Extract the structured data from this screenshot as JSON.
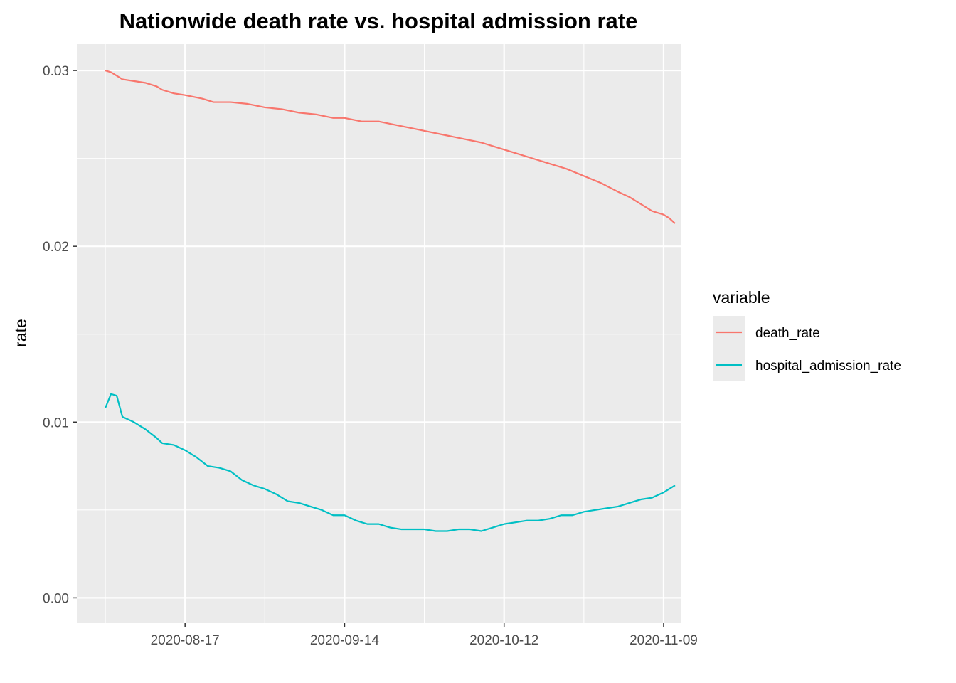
{
  "chart_data": {
    "type": "line",
    "title": "Nationwide death rate vs. hospital admission rate",
    "xlabel": "",
    "ylabel": "rate",
    "ylim": [
      -0.0014,
      0.0315
    ],
    "xlim": [
      "2020-07-29",
      "2020-11-12"
    ],
    "yticks": [
      {
        "value": 0.0,
        "label": "0.00"
      },
      {
        "value": 0.01,
        "label": "0.01"
      },
      {
        "value": 0.02,
        "label": "0.02"
      },
      {
        "value": 0.03,
        "label": "0.03"
      }
    ],
    "xticks": [
      {
        "value": "2020-08-17",
        "label": "2020-08-17"
      },
      {
        "value": "2020-09-14",
        "label": "2020-09-14"
      },
      {
        "value": "2020-10-12",
        "label": "2020-10-12"
      },
      {
        "value": "2020-11-09",
        "label": "2020-11-09"
      }
    ],
    "grid": true,
    "legend": {
      "title": "variable",
      "position": "right"
    },
    "series": [
      {
        "name": "death_rate",
        "color": "#F8766D",
        "points": [
          [
            "2020-08-03",
            0.03
          ],
          [
            "2020-08-04",
            0.0299
          ],
          [
            "2020-08-05",
            0.0297
          ],
          [
            "2020-08-06",
            0.0295
          ],
          [
            "2020-08-08",
            0.0294
          ],
          [
            "2020-08-10",
            0.0293
          ],
          [
            "2020-08-12",
            0.0291
          ],
          [
            "2020-08-13",
            0.0289
          ],
          [
            "2020-08-15",
            0.0287
          ],
          [
            "2020-08-17",
            0.0286
          ],
          [
            "2020-08-20",
            0.0284
          ],
          [
            "2020-08-22",
            0.0282
          ],
          [
            "2020-08-25",
            0.0282
          ],
          [
            "2020-08-28",
            0.0281
          ],
          [
            "2020-08-31",
            0.0279
          ],
          [
            "2020-09-03",
            0.0278
          ],
          [
            "2020-09-06",
            0.0276
          ],
          [
            "2020-09-09",
            0.0275
          ],
          [
            "2020-09-12",
            0.0273
          ],
          [
            "2020-09-14",
            0.0273
          ],
          [
            "2020-09-17",
            0.0271
          ],
          [
            "2020-09-20",
            0.0271
          ],
          [
            "2020-09-23",
            0.0269
          ],
          [
            "2020-09-26",
            0.0267
          ],
          [
            "2020-09-29",
            0.0265
          ],
          [
            "2020-10-02",
            0.0263
          ],
          [
            "2020-10-05",
            0.0261
          ],
          [
            "2020-10-08",
            0.0259
          ],
          [
            "2020-10-11",
            0.0256
          ],
          [
            "2020-10-14",
            0.0253
          ],
          [
            "2020-10-17",
            0.025
          ],
          [
            "2020-10-20",
            0.0247
          ],
          [
            "2020-10-23",
            0.0244
          ],
          [
            "2020-10-26",
            0.024
          ],
          [
            "2020-10-29",
            0.0236
          ],
          [
            "2020-11-01",
            0.0231
          ],
          [
            "2020-11-03",
            0.0228
          ],
          [
            "2020-11-05",
            0.0224
          ],
          [
            "2020-11-07",
            0.022
          ],
          [
            "2020-11-09",
            0.0218
          ],
          [
            "2020-11-10",
            0.0216
          ],
          [
            "2020-11-11",
            0.0213
          ]
        ]
      },
      {
        "name": "hospital_admission_rate",
        "color": "#00BFC4",
        "points": [
          [
            "2020-08-03",
            0.0108
          ],
          [
            "2020-08-04",
            0.0116
          ],
          [
            "2020-08-05",
            0.0115
          ],
          [
            "2020-08-06",
            0.0103
          ],
          [
            "2020-08-08",
            0.01
          ],
          [
            "2020-08-10",
            0.0096
          ],
          [
            "2020-08-12",
            0.0091
          ],
          [
            "2020-08-13",
            0.0088
          ],
          [
            "2020-08-15",
            0.0087
          ],
          [
            "2020-08-17",
            0.0084
          ],
          [
            "2020-08-19",
            0.008
          ],
          [
            "2020-08-21",
            0.0075
          ],
          [
            "2020-08-23",
            0.0074
          ],
          [
            "2020-08-25",
            0.0072
          ],
          [
            "2020-08-27",
            0.0067
          ],
          [
            "2020-08-29",
            0.0064
          ],
          [
            "2020-08-31",
            0.0062
          ],
          [
            "2020-09-02",
            0.0059
          ],
          [
            "2020-09-04",
            0.0055
          ],
          [
            "2020-09-06",
            0.0054
          ],
          [
            "2020-09-08",
            0.0052
          ],
          [
            "2020-09-10",
            0.005
          ],
          [
            "2020-09-12",
            0.0047
          ],
          [
            "2020-09-14",
            0.0047
          ],
          [
            "2020-09-16",
            0.0044
          ],
          [
            "2020-09-18",
            0.0042
          ],
          [
            "2020-09-20",
            0.0042
          ],
          [
            "2020-09-22",
            0.004
          ],
          [
            "2020-09-24",
            0.0039
          ],
          [
            "2020-09-26",
            0.0039
          ],
          [
            "2020-09-28",
            0.0039
          ],
          [
            "2020-09-30",
            0.0038
          ],
          [
            "2020-10-02",
            0.0038
          ],
          [
            "2020-10-04",
            0.0039
          ],
          [
            "2020-10-06",
            0.0039
          ],
          [
            "2020-10-08",
            0.0038
          ],
          [
            "2020-10-10",
            0.004
          ],
          [
            "2020-10-12",
            0.0042
          ],
          [
            "2020-10-14",
            0.0043
          ],
          [
            "2020-10-16",
            0.0044
          ],
          [
            "2020-10-18",
            0.0044
          ],
          [
            "2020-10-20",
            0.0045
          ],
          [
            "2020-10-22",
            0.0047
          ],
          [
            "2020-10-24",
            0.0047
          ],
          [
            "2020-10-26",
            0.0049
          ],
          [
            "2020-10-28",
            0.005
          ],
          [
            "2020-10-30",
            0.0051
          ],
          [
            "2020-11-01",
            0.0052
          ],
          [
            "2020-11-03",
            0.0054
          ],
          [
            "2020-11-05",
            0.0056
          ],
          [
            "2020-11-07",
            0.0057
          ],
          [
            "2020-11-09",
            0.006
          ],
          [
            "2020-11-10",
            0.0062
          ],
          [
            "2020-11-11",
            0.0064
          ]
        ]
      }
    ]
  }
}
